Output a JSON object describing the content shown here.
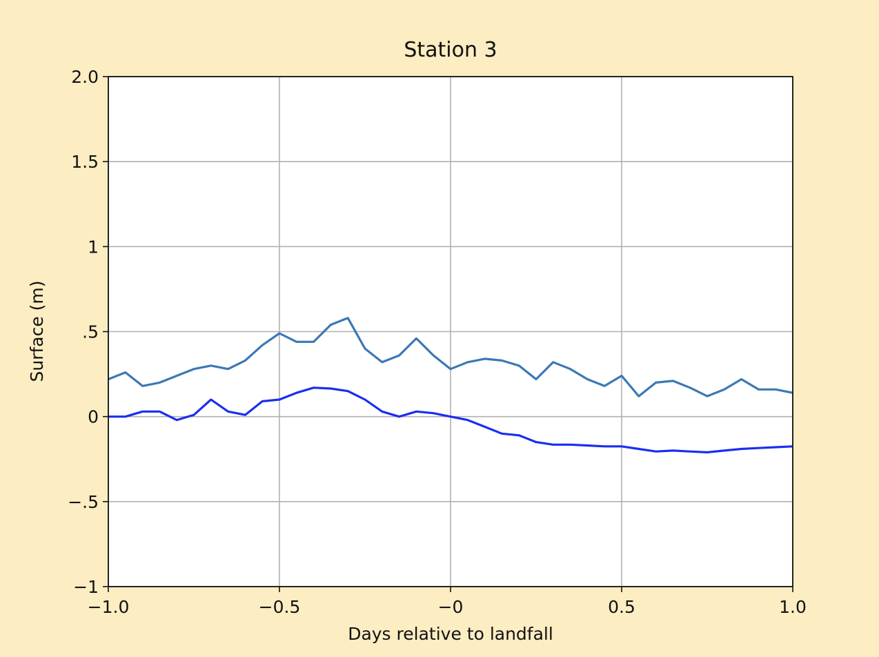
{
  "chart_data": {
    "type": "line",
    "title": "Station 3",
    "x_label": "Days relative to landfall",
    "y_label": "Surface (m)",
    "x": [
      -1.0,
      -0.95,
      -0.9,
      -0.85,
      -0.8,
      -0.75,
      -0.7,
      -0.65,
      -0.6,
      -0.55,
      -0.5,
      -0.45,
      -0.4,
      -0.35,
      -0.3,
      -0.25,
      -0.2,
      -0.15,
      -0.1,
      -0.05,
      0.0,
      0.05,
      0.1,
      0.15,
      0.2,
      0.25,
      0.3,
      0.35,
      0.4,
      0.45,
      0.5,
      0.55,
      0.6,
      0.65,
      0.7,
      0.75,
      0.8,
      0.85,
      0.9,
      0.95,
      1.0
    ],
    "series": [
      {
        "color": "#3b78b4",
        "values": [
          0.22,
          0.26,
          0.18,
          0.2,
          0.24,
          0.28,
          0.3,
          0.28,
          0.33,
          0.42,
          0.49,
          0.44,
          0.44,
          0.54,
          0.58,
          0.4,
          0.32,
          0.36,
          0.46,
          0.36,
          0.28,
          0.32,
          0.34,
          0.33,
          0.3,
          0.22,
          0.32,
          0.28,
          0.22,
          0.18,
          0.24,
          0.12,
          0.2,
          0.21,
          0.17,
          0.12,
          0.16,
          0.22,
          0.16,
          0.16,
          0.14
        ]
      },
      {
        "color": "#1a2ef0",
        "values": [
          0.0,
          0.0,
          0.03,
          0.03,
          -0.02,
          0.01,
          0.1,
          0.03,
          0.01,
          0.09,
          0.1,
          0.14,
          0.17,
          0.165,
          0.15,
          0.1,
          0.03,
          0.0,
          0.03,
          0.02,
          0.0,
          -0.02,
          -0.06,
          -0.1,
          -0.11,
          -0.15,
          -0.165,
          -0.165,
          -0.17,
          -0.175,
          -0.175,
          -0.19,
          -0.205,
          -0.2,
          -0.205,
          -0.21,
          -0.2,
          -0.19,
          -0.185,
          -0.18,
          -0.175
        ]
      }
    ],
    "xlim": [
      -1.0,
      1.0
    ],
    "ylim": [
      -1.0,
      2.0
    ],
    "xticks": [
      {
        "value": -1.0,
        "label": "−1.0"
      },
      {
        "value": -0.5,
        "label": "−0.5"
      },
      {
        "value": 0,
        "label": "−0"
      },
      0.5,
      {
        "value": 1.0,
        "label": "1.0"
      }
    ],
    "yticks": [
      {
        "value": -1,
        "label": "−1"
      },
      {
        "value": -0.5,
        "label": "−.5"
      },
      0,
      {
        "value": 0.5,
        "label": ".5"
      },
      1,
      1.5,
      {
        "value": 2.0,
        "label": "2.0"
      }
    ],
    "grid": true
  }
}
